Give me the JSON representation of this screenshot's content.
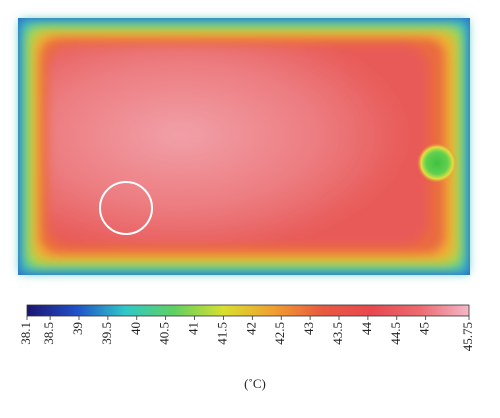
{
  "chart_data": {
    "type": "thermal-image",
    "colorbar": {
      "label": "(˚C)",
      "lim": [
        38.1,
        45.75
      ],
      "ticks": [
        38.1,
        38.5,
        39,
        39.5,
        40,
        40.5,
        41,
        41.5,
        42,
        42.5,
        43,
        43.5,
        44,
        44.5,
        45,
        45.75
      ],
      "colors": [
        "#1c1470",
        "#2050c8",
        "#30c8c8",
        "#60d060",
        "#d8e030",
        "#f0a030",
        "#e85a40",
        "#e84850",
        "#ec6a70",
        "#f4b8c8"
      ]
    }
  }
}
